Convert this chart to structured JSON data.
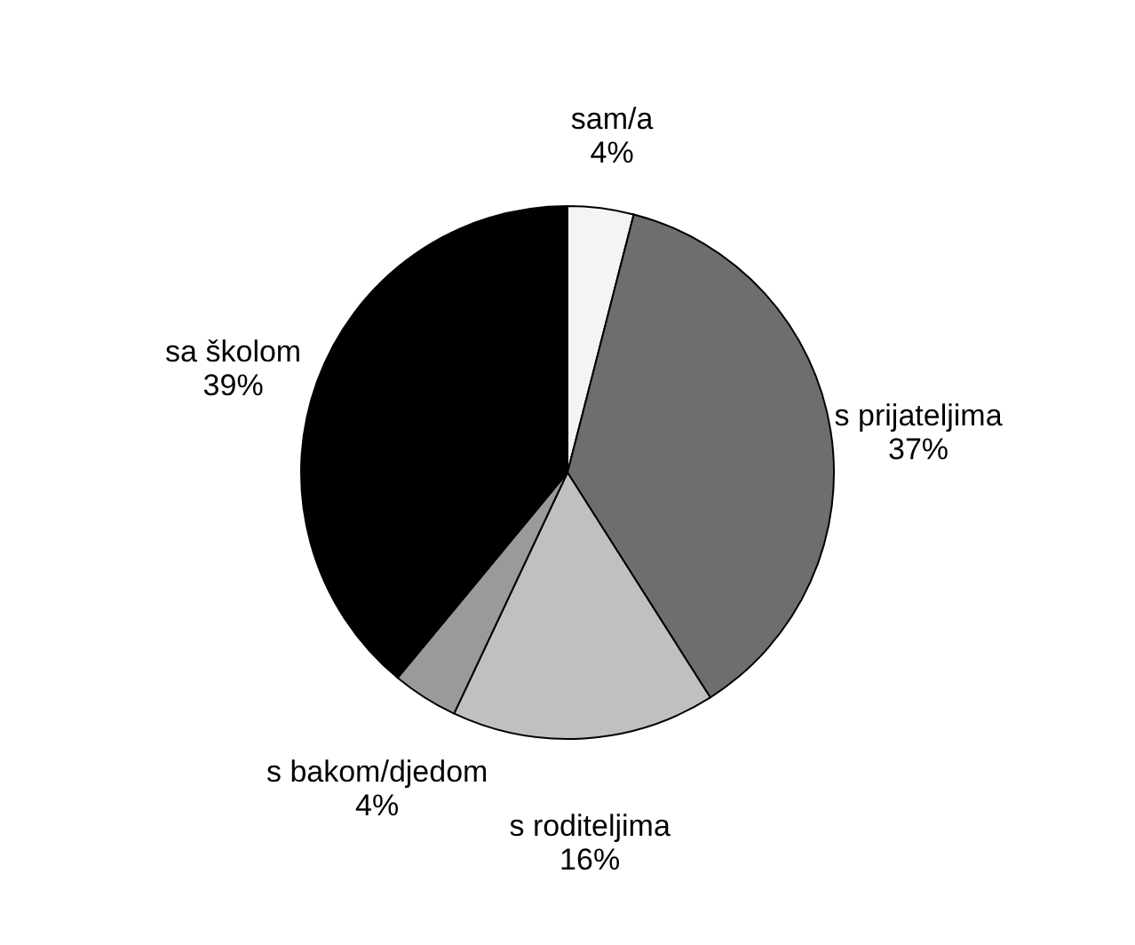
{
  "chart_data": {
    "type": "pie",
    "categories": [
      "sam/a",
      "s prijateljima",
      "s roditeljima",
      "s bakom/djedom",
      "sa školom"
    ],
    "values": [
      4,
      37,
      16,
      4,
      39
    ],
    "value_labels": [
      "4%",
      "37%",
      "16%",
      "4%",
      "39%"
    ],
    "colors": [
      "#f4f4f4",
      "#6e6e6e",
      "#c0c0c0",
      "#9a9a9a",
      "#000000"
    ],
    "legend": false
  }
}
